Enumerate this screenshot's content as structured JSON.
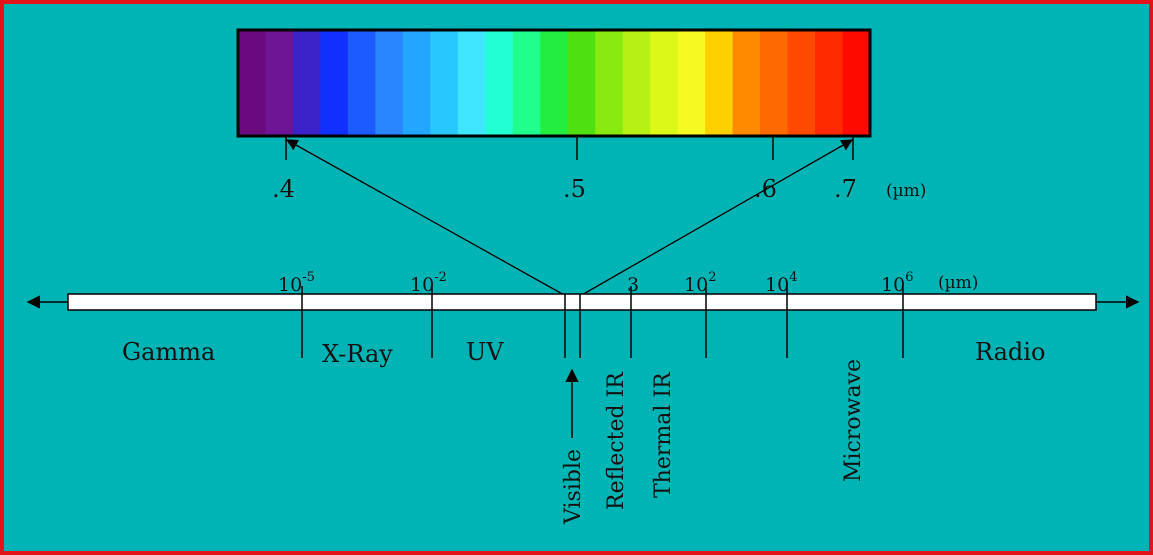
{
  "colors": {
    "background": "#00b3b5",
    "border": "#e2141a",
    "outer": "#f6d400",
    "spectrum": [
      "#6a0a7e",
      "#6e1596",
      "#3a22c8",
      "#1030ff",
      "#1c5cff",
      "#2a86ff",
      "#22a6ff",
      "#28c8ff",
      "#40e6ff",
      "#22ffd4",
      "#20ff8e",
      "#22ee40",
      "#4ee010",
      "#88ea10",
      "#b6f014",
      "#dcf818",
      "#f6fa22",
      "#ffd000",
      "#ff8a00",
      "#ff6a00",
      "#ff4a00",
      "#ff2a00",
      "#ff0a00"
    ]
  },
  "spectrum": {
    "ticks": [
      ".4",
      ".5",
      ".6",
      ".7"
    ],
    "unit": "(µm)"
  },
  "scale": {
    "ticks": [
      {
        "base": "10",
        "exp": "-5"
      },
      {
        "base": "10",
        "exp": "-2"
      },
      {
        "base": "3",
        "exp": ""
      },
      {
        "base": "10",
        "exp": "2"
      },
      {
        "base": "10",
        "exp": "4"
      },
      {
        "base": "10",
        "exp": "6"
      }
    ],
    "unit": "(µm)"
  },
  "regions": {
    "gamma": "Gamma",
    "xray": "X-Ray",
    "uv": "UV",
    "visible": "Visible",
    "reflected_ir": "Reflected IR",
    "thermal_ir": "Thermal IR",
    "microwave": "Microwave",
    "radio": "Radio"
  }
}
